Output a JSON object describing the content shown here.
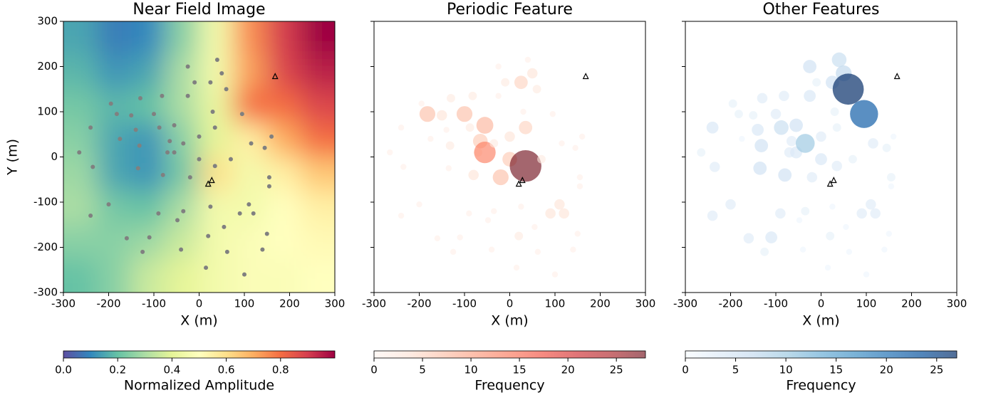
{
  "chart_data": [
    {
      "type": "heatmap",
      "title": "Near Field Image",
      "xlabel": "X (m)",
      "ylabel": "Y (m)",
      "xlim": [
        -300,
        300
      ],
      "ylim": [
        -300,
        300
      ],
      "xticks": [
        -300,
        -200,
        -100,
        0,
        100,
        200,
        300
      ],
      "yticks": [
        -300,
        -200,
        -100,
        0,
        100,
        200,
        300
      ],
      "x": [
        -262.5,
        -187.5,
        -112.5,
        -37.5,
        37.5,
        112.5,
        187.5,
        262.5
      ],
      "y": [
        262.5,
        187.5,
        112.5,
        37.5,
        -37.5,
        -112.5,
        -187.5,
        -262.5
      ],
      "z": [
        [
          0.15,
          0.08,
          0.1,
          0.25,
          0.45,
          0.75,
          0.9,
          1.0
        ],
        [
          0.18,
          0.12,
          0.15,
          0.3,
          0.45,
          0.72,
          0.88,
          0.95
        ],
        [
          0.22,
          0.18,
          0.2,
          0.3,
          0.42,
          0.8,
          0.8,
          0.88
        ],
        [
          0.25,
          0.15,
          0.12,
          0.25,
          0.4,
          0.55,
          0.7,
          0.8
        ],
        [
          0.28,
          0.15,
          0.12,
          0.22,
          0.6,
          0.45,
          0.55,
          0.65
        ],
        [
          0.3,
          0.22,
          0.2,
          0.3,
          0.45,
          0.45,
          0.5,
          0.55
        ],
        [
          0.25,
          0.25,
          0.28,
          0.35,
          0.45,
          0.48,
          0.5,
          0.52
        ],
        [
          0.2,
          0.25,
          0.35,
          0.4,
          0.45,
          0.48,
          0.48,
          0.5
        ]
      ],
      "colormap": [
        "#5e4fa2",
        "#3288bd",
        "#66c2a5",
        "#abdda4",
        "#e6f598",
        "#ffffbf",
        "#fee08b",
        "#fdae61",
        "#f46d43",
        "#d53e4f",
        "#9e0142"
      ],
      "stations": {
        "color": "#808080",
        "x": [
          -265,
          -240,
          -235,
          -240,
          -200,
          -195,
          -182,
          -175,
          -160,
          -150,
          -140,
          -135,
          -132,
          -130,
          -125,
          -110,
          -100,
          -90,
          -88,
          -82,
          -80,
          -70,
          -65,
          -55,
          -55,
          -48,
          -40,
          -35,
          -25,
          -25,
          -35,
          -20,
          -10,
          0,
          0,
          15,
          20,
          25,
          25,
          30,
          35,
          35,
          40,
          50,
          55,
          60,
          62,
          70,
          90,
          95,
          100,
          110,
          115,
          120,
          140,
          145,
          150,
          155,
          160,
          155
        ],
        "y": [
          10,
          65,
          -22,
          -130,
          -105,
          118,
          95,
          40,
          -180,
          92,
          60,
          -25,
          25,
          130,
          -210,
          -178,
          95,
          -125,
          65,
          135,
          -40,
          10,
          35,
          70,
          10,
          -140,
          -205,
          -120,
          200,
          135,
          30,
          -45,
          165,
          45,
          -5,
          -245,
          -175,
          165,
          -110,
          100,
          -20,
          65,
          215,
          185,
          -155,
          150,
          -210,
          -5,
          -125,
          95,
          -260,
          -105,
          30,
          -125,
          -205,
          20,
          -170,
          -45,
          45,
          -65
        ]
      },
      "sources": {
        "x": [
          168,
          28,
          20
        ],
        "y": [
          178,
          -52,
          -60
        ]
      },
      "colorbar": {
        "label": "Normalized Amplitude",
        "lim": [
          0,
          1
        ],
        "ticks": [
          {
            "value": 0,
            "label": "0.0"
          },
          0.2,
          0.4,
          0.6,
          0.8
        ]
      }
    },
    {
      "type": "bubble",
      "title": "Periodic Feature",
      "xlabel": "X (m)",
      "sharey": true,
      "alpha": 0.6,
      "xlim": [
        -300,
        300
      ],
      "ylim": [
        -300,
        300
      ],
      "xticks": [
        -300,
        -200,
        -100,
        0,
        100,
        200,
        300
      ],
      "yticks": [
        -300,
        -200,
        -100,
        0,
        100,
        200,
        300
      ],
      "x": [
        -265,
        -240,
        -235,
        -240,
        -200,
        -195,
        -182,
        -175,
        -160,
        -150,
        -140,
        -135,
        -132,
        -130,
        -125,
        -110,
        -100,
        -90,
        -88,
        -82,
        -80,
        -70,
        -65,
        -55,
        -55,
        -48,
        -40,
        -35,
        -25,
        -25,
        -35,
        -20,
        -10,
        0,
        0,
        15,
        20,
        25,
        25,
        30,
        35,
        35,
        40,
        50,
        55,
        60,
        62,
        70,
        90,
        95,
        100,
        110,
        115,
        120,
        140,
        145,
        150,
        155,
        160,
        155
      ],
      "y": [
        10,
        65,
        -22,
        -130,
        -105,
        118,
        95,
        40,
        -180,
        92,
        60,
        -25,
        25,
        130,
        -210,
        -178,
        95,
        -125,
        65,
        135,
        -40,
        10,
        35,
        70,
        10,
        -140,
        -205,
        -120,
        200,
        135,
        30,
        -45,
        165,
        45,
        -5,
        -245,
        -175,
        165,
        -110,
        100,
        -20,
        65,
        215,
        185,
        -155,
        150,
        -210,
        -5,
        -125,
        95,
        -260,
        -105,
        30,
        -125,
        -205,
        20,
        -170,
        -45,
        45,
        -65
      ],
      "values": [
        1,
        1,
        1,
        1,
        1,
        1,
        7,
        1,
        1,
        3,
        1,
        1,
        2,
        2,
        1,
        1,
        7,
        1,
        2,
        2,
        3,
        2,
        6,
        8,
        13,
        1,
        1,
        1,
        1,
        1,
        2,
        7,
        2,
        3,
        6,
        1,
        2,
        5,
        1,
        1,
        28,
        5,
        1,
        3,
        1,
        2,
        1,
        2,
        3,
        1,
        1,
        3,
        1,
        3,
        1,
        1,
        1,
        1,
        1,
        1
      ],
      "colormap": [
        "#fff5f0",
        "#fee0d2",
        "#fcbba1",
        "#fc9272",
        "#fb6a4a",
        "#ef3b2c",
        "#cb181d",
        "#a50f15",
        "#67000d"
      ],
      "sources": {
        "x": [
          168,
          28,
          20
        ],
        "y": [
          178,
          -52,
          -60
        ]
      },
      "colorbar": {
        "label": "Frequency",
        "lim": [
          0,
          28
        ],
        "ticks": [
          0,
          5,
          10,
          15,
          20,
          25
        ]
      }
    },
    {
      "type": "bubble",
      "title": "Other Features",
      "xlabel": "X (m)",
      "sharey": true,
      "alpha": 0.7,
      "xlim": [
        -300,
        300
      ],
      "ylim": [
        -300,
        300
      ],
      "xticks": [
        -300,
        -200,
        -100,
        0,
        100,
        200,
        300
      ],
      "yticks": [
        -300,
        -200,
        -100,
        0,
        100,
        200,
        300
      ],
      "x": [
        -265,
        -240,
        -235,
        -240,
        -200,
        -195,
        -182,
        -175,
        -160,
        -150,
        -140,
        -135,
        -132,
        -130,
        -125,
        -110,
        -100,
        -90,
        -88,
        -82,
        -80,
        -70,
        -65,
        -55,
        -55,
        -48,
        -40,
        -35,
        -25,
        -25,
        -35,
        -20,
        -10,
        0,
        0,
        15,
        20,
        25,
        25,
        30,
        35,
        35,
        40,
        50,
        55,
        60,
        62,
        70,
        90,
        95,
        100,
        110,
        115,
        120,
        140,
        145,
        150,
        155,
        160,
        155
      ],
      "y": [
        10,
        65,
        -22,
        -130,
        -105,
        118,
        95,
        40,
        -180,
        92,
        60,
        -25,
        25,
        130,
        -210,
        -178,
        95,
        -125,
        65,
        135,
        -40,
        10,
        35,
        70,
        10,
        -140,
        -205,
        -120,
        200,
        135,
        30,
        -45,
        165,
        45,
        -5,
        -245,
        -175,
        165,
        -110,
        100,
        -20,
        65,
        215,
        185,
        -155,
        150,
        -210,
        -5,
        -125,
        95,
        -260,
        -105,
        30,
        -125,
        -205,
        20,
        -170,
        -45,
        45,
        -65
      ],
      "values": [
        2,
        4,
        3,
        3,
        3,
        2,
        2,
        1,
        3,
        2,
        4,
        5,
        5,
        3,
        2,
        4,
        3,
        3,
        6,
        3,
        5,
        3,
        3,
        5,
        4,
        1,
        1,
        2,
        5,
        4,
        10,
        3,
        2,
        3,
        4,
        1,
        2,
        5,
        1,
        2,
        3,
        2,
        6,
        7,
        1,
        27,
        1,
        2,
        3,
        22,
        1,
        3,
        3,
        3,
        1,
        2,
        1,
        2,
        1,
        1
      ],
      "colormap": [
        "#f7fbff",
        "#deebf7",
        "#c6dbef",
        "#9ecae1",
        "#6baed6",
        "#4292c6",
        "#2171b5",
        "#08519c",
        "#08306b"
      ],
      "sources": {
        "x": [
          168,
          28,
          20
        ],
        "y": [
          178,
          -52,
          -60
        ]
      },
      "colorbar": {
        "label": "Frequency",
        "lim": [
          0,
          27
        ],
        "ticks": [
          0,
          5,
          10,
          15,
          20,
          25
        ]
      }
    }
  ]
}
